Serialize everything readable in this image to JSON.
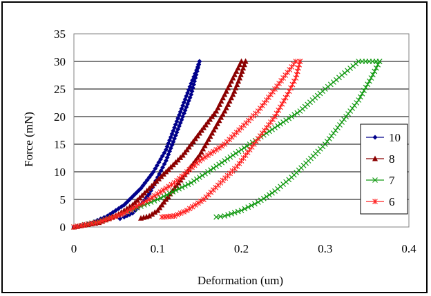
{
  "chart_data": {
    "type": "scatter",
    "title": "",
    "xlabel": "Deformation (um)",
    "ylabel": "Force (mN)",
    "xlim": [
      0,
      0.4
    ],
    "ylim": [
      0,
      35
    ],
    "xticks": [
      "0",
      "0.1",
      "0.2",
      "0.3",
      "0.4"
    ],
    "yticks": [
      "0",
      "5",
      "10",
      "15",
      "20",
      "25",
      "30",
      "35"
    ],
    "grid": "horizontal",
    "legend_position": "right",
    "series": [
      {
        "name": "10",
        "color": "#00008B",
        "marker": "diamond",
        "loading": [
          [
            0,
            0
          ],
          [
            0.02,
            0.7
          ],
          [
            0.04,
            2
          ],
          [
            0.06,
            4
          ],
          [
            0.08,
            7
          ],
          [
            0.095,
            10
          ],
          [
            0.11,
            14
          ],
          [
            0.12,
            18
          ],
          [
            0.13,
            22
          ],
          [
            0.14,
            26
          ],
          [
            0.148,
            29
          ],
          [
            0.15,
            30
          ]
        ],
        "unloading": [
          [
            0.15,
            30
          ],
          [
            0.145,
            27
          ],
          [
            0.14,
            24
          ],
          [
            0.13,
            20
          ],
          [
            0.12,
            16
          ],
          [
            0.11,
            12
          ],
          [
            0.1,
            9
          ],
          [
            0.09,
            6
          ],
          [
            0.08,
            4
          ],
          [
            0.07,
            2.5
          ],
          [
            0.06,
            1.8
          ],
          [
            0.055,
            1.5
          ]
        ]
      },
      {
        "name": "8",
        "color": "#8B0000",
        "marker": "triangle",
        "loading": [
          [
            0,
            0
          ],
          [
            0.03,
            0.8
          ],
          [
            0.05,
            2
          ],
          [
            0.07,
            4
          ],
          [
            0.09,
            7
          ],
          [
            0.11,
            10
          ],
          [
            0.13,
            13
          ],
          [
            0.15,
            17
          ],
          [
            0.17,
            21
          ],
          [
            0.18,
            24
          ],
          [
            0.19,
            27
          ],
          [
            0.2,
            30
          ],
          [
            0.205,
            30
          ]
        ],
        "unloading": [
          [
            0.205,
            30
          ],
          [
            0.198,
            27
          ],
          [
            0.19,
            24
          ],
          [
            0.18,
            21
          ],
          [
            0.165,
            17
          ],
          [
            0.15,
            13
          ],
          [
            0.135,
            10
          ],
          [
            0.12,
            7
          ],
          [
            0.11,
            5
          ],
          [
            0.1,
            3
          ],
          [
            0.09,
            2
          ],
          [
            0.08,
            1.6
          ]
        ]
      },
      {
        "name": "7",
        "color": "#119911",
        "marker": "x",
        "loading": [
          [
            0,
            0
          ],
          [
            0.03,
            1
          ],
          [
            0.06,
            2.5
          ],
          [
            0.1,
            5
          ],
          [
            0.14,
            8
          ],
          [
            0.18,
            12
          ],
          [
            0.21,
            15
          ],
          [
            0.24,
            18
          ],
          [
            0.27,
            21
          ],
          [
            0.3,
            25
          ],
          [
            0.32,
            27.5
          ],
          [
            0.34,
            30
          ],
          [
            0.365,
            30
          ]
        ],
        "unloading": [
          [
            0.365,
            30
          ],
          [
            0.355,
            27
          ],
          [
            0.34,
            23
          ],
          [
            0.32,
            19
          ],
          [
            0.3,
            15
          ],
          [
            0.28,
            12
          ],
          [
            0.26,
            9
          ],
          [
            0.24,
            6.5
          ],
          [
            0.22,
            4.5
          ],
          [
            0.2,
            3
          ],
          [
            0.18,
            2
          ],
          [
            0.17,
            1.8
          ]
        ]
      },
      {
        "name": "6",
        "color": "#FF2222",
        "marker": "asterisk",
        "loading": [
          [
            0,
            0
          ],
          [
            0.03,
            0.9
          ],
          [
            0.06,
            2.5
          ],
          [
            0.09,
            5
          ],
          [
            0.12,
            8
          ],
          [
            0.15,
            12
          ],
          [
            0.18,
            15
          ],
          [
            0.2,
            18
          ],
          [
            0.22,
            21
          ],
          [
            0.24,
            25
          ],
          [
            0.255,
            28
          ],
          [
            0.265,
            30
          ],
          [
            0.27,
            30
          ]
        ],
        "unloading": [
          [
            0.27,
            30
          ],
          [
            0.265,
            27
          ],
          [
            0.255,
            24
          ],
          [
            0.24,
            20
          ],
          [
            0.225,
            17
          ],
          [
            0.21,
            14
          ],
          [
            0.195,
            11
          ],
          [
            0.175,
            8
          ],
          [
            0.155,
            5
          ],
          [
            0.135,
            3
          ],
          [
            0.12,
            2
          ],
          [
            0.105,
            1.8
          ]
        ]
      }
    ]
  }
}
